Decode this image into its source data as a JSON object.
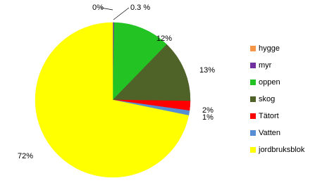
{
  "chart_data": {
    "type": "pie",
    "categories": [
      "hygge",
      "myr",
      "oppen",
      "skog",
      "Tätort",
      "Vatten",
      "jordbruksblok"
    ],
    "values": [
      0,
      0.3,
      12,
      13,
      2,
      1,
      72
    ],
    "value_labels": [
      "0%",
      "0.3 %",
      "12%",
      "13%",
      "2%",
      "1%",
      "72%"
    ],
    "colors": [
      "#f79646",
      "#7030a0",
      "#22c322",
      "#4f6228",
      "#ff0000",
      "#558ed5",
      "#ffff00"
    ],
    "legend": "right"
  }
}
